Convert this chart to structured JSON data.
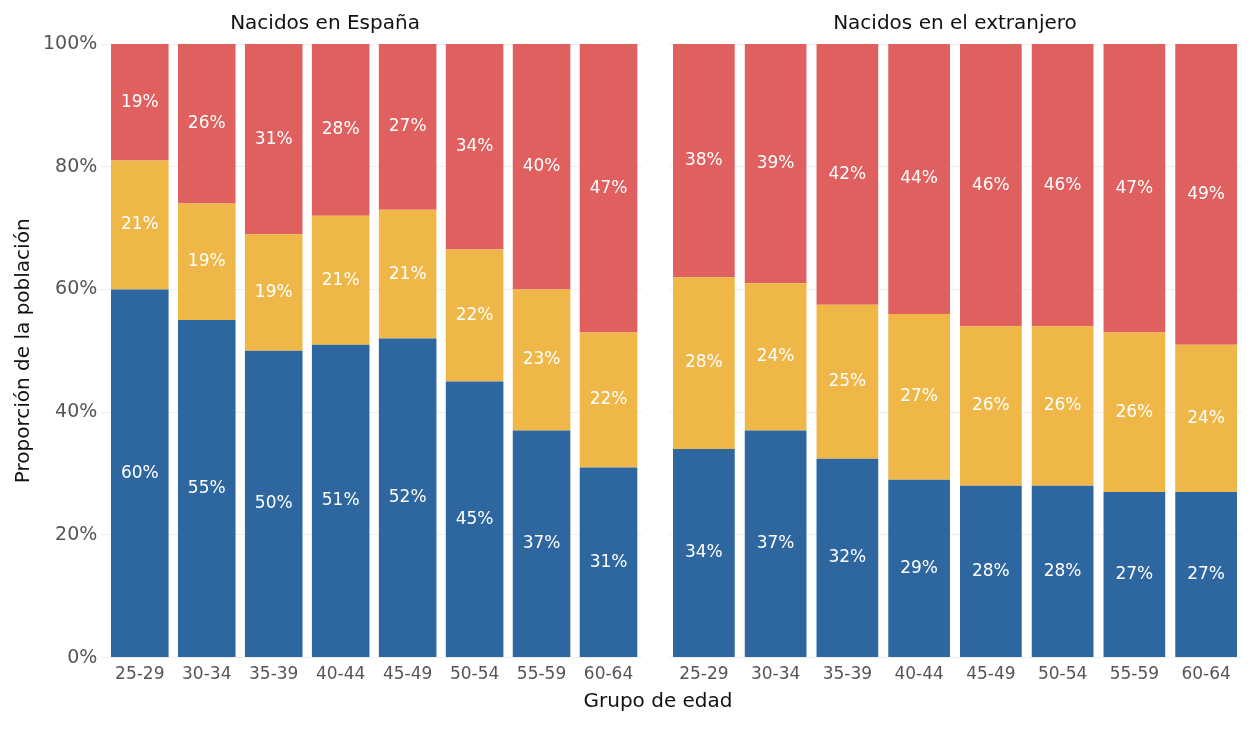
{
  "chart_data": [
    {
      "type": "bar",
      "title": "Nacidos en España",
      "xlabel": "Grupo de edad",
      "ylabel": "Proporción de la población",
      "stacked": true,
      "grid": "y",
      "categories": [
        "25-29",
        "30-34",
        "35-39",
        "40-44",
        "45-49",
        "50-54",
        "55-59",
        "60-64"
      ],
      "ylim": [
        0,
        100
      ],
      "yticks": [
        {
          "value": 0,
          "label": "0%"
        },
        {
          "value": 20,
          "label": "20%"
        },
        {
          "value": 40,
          "label": "40%"
        },
        {
          "value": 60,
          "label": "60%"
        },
        {
          "value": 80,
          "label": "80%"
        },
        {
          "value": 100,
          "label": "100%"
        }
      ],
      "series": [
        {
          "color": "#2e67a0",
          "values": [
            60,
            55,
            50,
            51,
            52,
            45,
            37,
            31
          ],
          "value_labels": [
            "60%",
            "55%",
            "50%",
            "51%",
            "52%",
            "45%",
            "37%",
            "31%"
          ]
        },
        {
          "color": "#efb748",
          "values": [
            21,
            19,
            19,
            21,
            21,
            21.5,
            23,
            22
          ],
          "value_labels": [
            "21%",
            "19%",
            "19%",
            "21%",
            "21%",
            "22%",
            "23%",
            "22%"
          ]
        },
        {
          "color": "#e05f5f",
          "values": [
            19,
            26,
            31,
            28,
            27,
            33.5,
            40,
            47
          ],
          "value_labels": [
            "19%",
            "26%",
            "31%",
            "28%",
            "27%",
            "34%",
            "40%",
            "47%"
          ]
        }
      ]
    },
    {
      "type": "bar",
      "title": "Nacidos en el extranjero",
      "stacked": true,
      "grid": "y",
      "tick_labels": "x",
      "categories": [
        "25-29",
        "30-34",
        "35-39",
        "40-44",
        "45-49",
        "50-54",
        "55-59",
        "60-64"
      ],
      "ylim": [
        0,
        100
      ],
      "yticks": [
        0,
        20,
        40,
        60,
        80,
        100
      ],
      "series": [
        {
          "color": "#2e67a0",
          "values": [
            34,
            37,
            32.4,
            29,
            28,
            28,
            27,
            27
          ],
          "value_labels": [
            "34%",
            "37%",
            "32%",
            "29%",
            "28%",
            "28%",
            "27%",
            "27%"
          ]
        },
        {
          "color": "#efb748",
          "values": [
            28,
            24,
            25.1,
            27,
            26,
            26,
            26,
            24
          ],
          "value_labels": [
            "28%",
            "24%",
            "25%",
            "27%",
            "26%",
            "26%",
            "26%",
            "24%"
          ]
        },
        {
          "color": "#e05f5f",
          "values": [
            38,
            39,
            42.5,
            44,
            46,
            46,
            47,
            49
          ],
          "value_labels": [
            "38%",
            "39%",
            "42%",
            "44%",
            "46%",
            "46%",
            "47%",
            "49%"
          ]
        }
      ]
    }
  ]
}
